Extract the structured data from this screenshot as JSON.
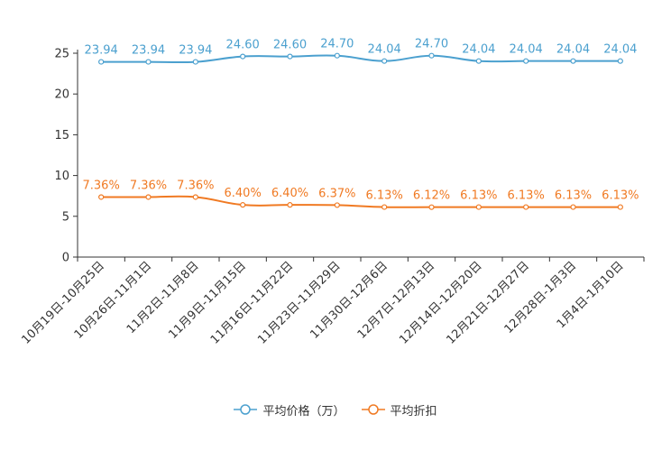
{
  "chart_data": {
    "type": "line",
    "categories": [
      "10月19日-10月25日",
      "10月26日-11月1日",
      "11月2日-11月8日",
      "11月9日-11月15日",
      "11月16日-11月22日",
      "11月23日-11月29日",
      "11月30日-12月6日",
      "12月7日-12月13日",
      "12月14日-12月20日",
      "12月21日-12月27日",
      "12月28日-1月3日",
      "1月4日-1月10日"
    ],
    "series": [
      {
        "name": "平均价格（万）",
        "color": "#4ba0cf",
        "values": [
          23.94,
          23.94,
          23.94,
          24.6,
          24.6,
          24.7,
          24.04,
          24.7,
          24.04,
          24.04,
          24.04,
          24.04
        ],
        "labels": [
          "23.94",
          "23.94",
          "23.94",
          "24.60",
          "24.60",
          "24.70",
          "24.04",
          "24.70",
          "24.04",
          "24.04",
          "24.04",
          "24.04"
        ]
      },
      {
        "name": "平均折扣",
        "color": "#f07a23",
        "values": [
          7.36,
          7.36,
          7.36,
          6.4,
          6.4,
          6.37,
          6.13,
          6.12,
          6.13,
          6.13,
          6.13,
          6.13
        ],
        "labels": [
          "7.36%",
          "7.36%",
          "7.36%",
          "6.40%",
          "6.40%",
          "6.37%",
          "6.13%",
          "6.12%",
          "6.13%",
          "6.13%",
          "6.13%",
          "6.13%"
        ]
      }
    ],
    "yticks": [
      0,
      5,
      10,
      15,
      20,
      25
    ],
    "ylim": [
      0,
      25
    ],
    "title": "",
    "xlabel": "",
    "ylabel": "",
    "grid": false,
    "legend_position": "bottom-center"
  }
}
